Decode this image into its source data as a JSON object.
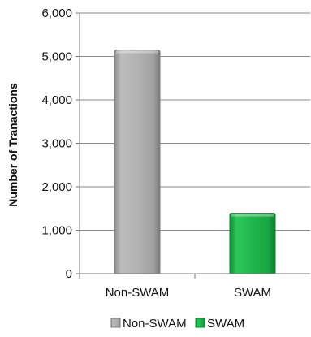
{
  "chart_data": {
    "type": "bar",
    "title": "",
    "xlabel": "",
    "ylabel": "Number of Tranactions",
    "categories": [
      "Non-SWAM",
      "SWAM"
    ],
    "values": [
      5150,
      1390
    ],
    "ylim": [
      0,
      6000
    ],
    "yticks": [
      0,
      1000,
      2000,
      3000,
      4000,
      5000,
      6000
    ],
    "ytick_labels": [
      "0",
      "1,000",
      "2,000",
      "3,000",
      "4,000",
      "5,000",
      "6,000"
    ],
    "grid": "horizontal",
    "legend": {
      "placement": "bottom",
      "entries": [
        "Non-SWAM",
        "SWAM"
      ]
    },
    "colors": [
      "#a9a9a9",
      "#1fb34a"
    ]
  }
}
